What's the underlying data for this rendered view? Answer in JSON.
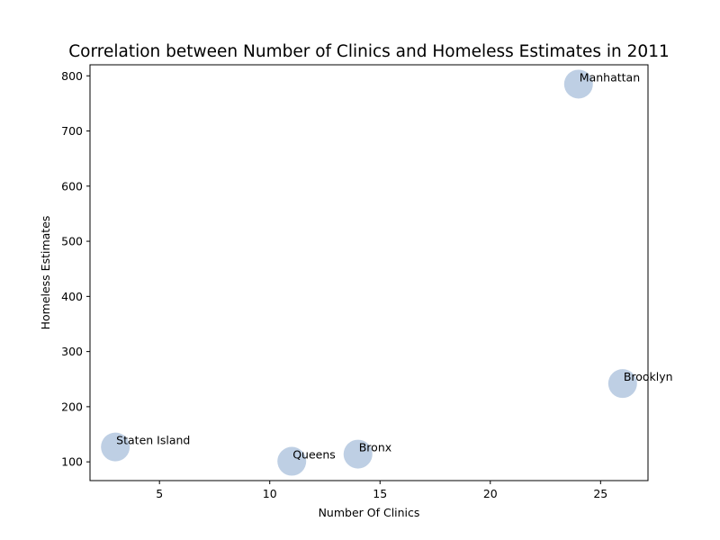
{
  "chart_data": {
    "type": "scatter",
    "title": "Correlation between Number of Clinics and Homeless Estimates in 2011",
    "xlabel": "Number Of Clinics",
    "ylabel": "Homeless Estimates",
    "xlim": [
      1.85,
      27.15
    ],
    "ylim": [
      66,
      820
    ],
    "xticks": [
      5,
      10,
      15,
      20,
      25
    ],
    "yticks": [
      100,
      200,
      300,
      400,
      500,
      600,
      700,
      800
    ],
    "grid": false,
    "marker_color": "#b0c4de",
    "points": [
      {
        "label": "Staten Island",
        "x": 3,
        "y": 127
      },
      {
        "label": "Queens",
        "x": 11,
        "y": 101
      },
      {
        "label": "Bronx",
        "x": 14,
        "y": 114
      },
      {
        "label": "Manhattan",
        "x": 24,
        "y": 785
      },
      {
        "label": "Brooklyn",
        "x": 26,
        "y": 242
      }
    ]
  }
}
